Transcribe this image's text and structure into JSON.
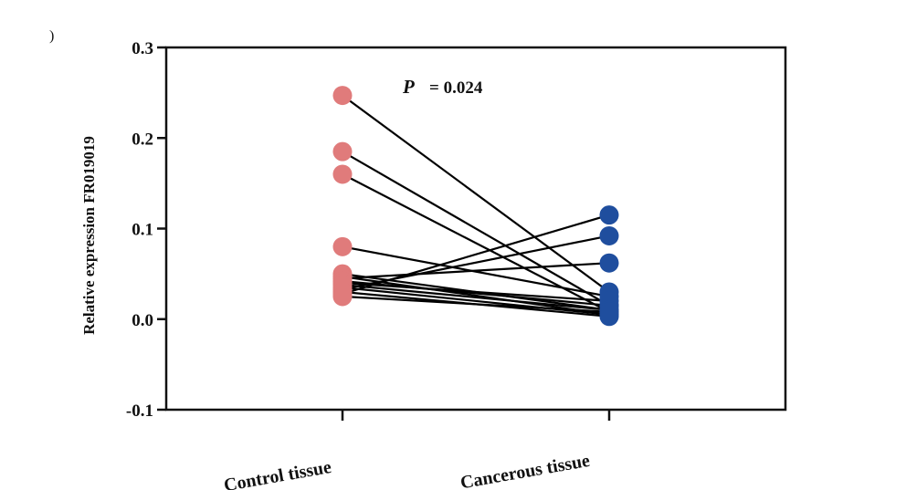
{
  "chart_data": {
    "type": "scatter",
    "corner_mark": ")",
    "ylabel": "Relative expression FR019019",
    "ylim": [
      -0.1,
      0.3
    ],
    "yticks": [
      "-0.1",
      "0.0",
      "0.1",
      "0.2",
      "0.3"
    ],
    "ytick_values": [
      -0.1,
      0.0,
      0.1,
      0.2,
      0.3
    ],
    "categories": [
      "Control tissue",
      "Cancerous tissue"
    ],
    "annotation": {
      "p_symbol": "P",
      "p_text": "= 0.024"
    },
    "colors": {
      "control": "#e07b7b",
      "cancerous": "#1f4e9e",
      "line": "#000000"
    },
    "pairs": [
      [
        0.247,
        0.03
      ],
      [
        0.185,
        0.015
      ],
      [
        0.16,
        0.008
      ],
      [
        0.08,
        0.025
      ],
      [
        0.05,
        0.01
      ],
      [
        0.047,
        0.005
      ],
      [
        0.045,
        0.062
      ],
      [
        0.042,
        0.015
      ],
      [
        0.04,
        0.02
      ],
      [
        0.038,
        0.01
      ],
      [
        0.035,
        0.005
      ],
      [
        0.033,
        0.092
      ],
      [
        0.03,
        0.003
      ],
      [
        0.028,
        0.115
      ],
      [
        0.025,
        0.008
      ]
    ]
  }
}
